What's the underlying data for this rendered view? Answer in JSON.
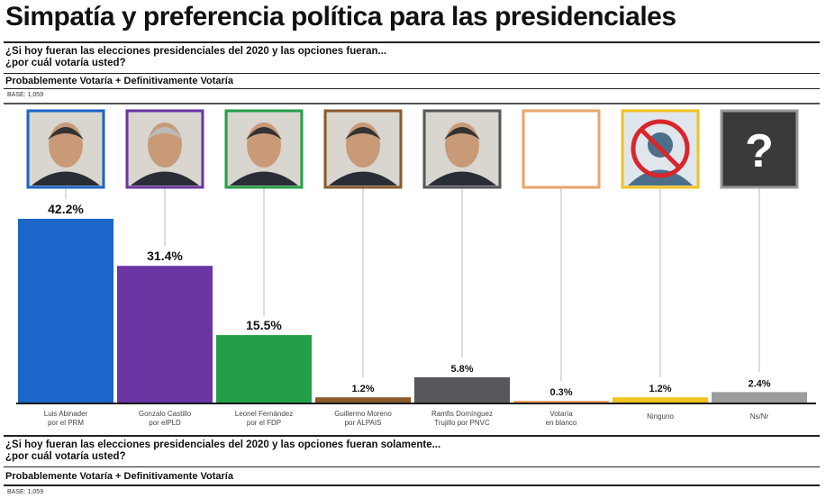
{
  "title": "Simpatía y preferencia política para las presidenciales",
  "section1": {
    "question_line1": "¿Si hoy fueran las elecciones presidenciales del 2020 y las opciones fueran...",
    "question_line2": "¿por cuál votaría usted?",
    "subtitle": "Probablemente Votaría + Definitivamente Votaría",
    "base": "BASE: 1,059"
  },
  "section2": {
    "question_line1": "¿Si hoy fueran las elecciones presidenciales del 2020 y las opciones fueran solamente...",
    "question_line2": "¿por cuál votaría usted?",
    "subtitle": "Probablemente Votaría + Definitivamente Votaría",
    "base": "BASE: 1,059"
  },
  "chart_data": {
    "type": "bar",
    "categories": [
      [
        "Luis Abinader",
        "por el PRM"
      ],
      [
        "Gonzalo Castillo",
        "por elPLD"
      ],
      [
        "Leonel Fernández",
        "por el FDP"
      ],
      [
        "Guillermo Moreno",
        "por ALPAIS"
      ],
      [
        "Ramfis Domínguez",
        "Trujillo por PNVC"
      ],
      [
        "Votaría",
        "en blanco"
      ],
      [
        "Ninguno"
      ],
      [
        "Ns/Nr"
      ]
    ],
    "values": [
      42.2,
      31.4,
      15.5,
      1.2,
      5.8,
      0.3,
      1.2,
      2.4
    ],
    "labels": [
      "42.2%",
      "31.4%",
      "15.5%",
      "1.2%",
      "5.8%",
      "0.3%",
      "1.2%",
      "2.4%"
    ],
    "colors": [
      "#1a66c9",
      "#6b36a3",
      "#23a047",
      "#8a5a2c",
      "#56575b",
      "#e9a56a",
      "#f0c31d",
      "#9c9c9c"
    ],
    "icons": [
      "photo",
      "photo",
      "photo",
      "photo",
      "photo",
      "blank-box-icon",
      "no-person-icon",
      "question-mark-icon"
    ],
    "ylim": [
      0,
      45
    ],
    "grid": false
  }
}
